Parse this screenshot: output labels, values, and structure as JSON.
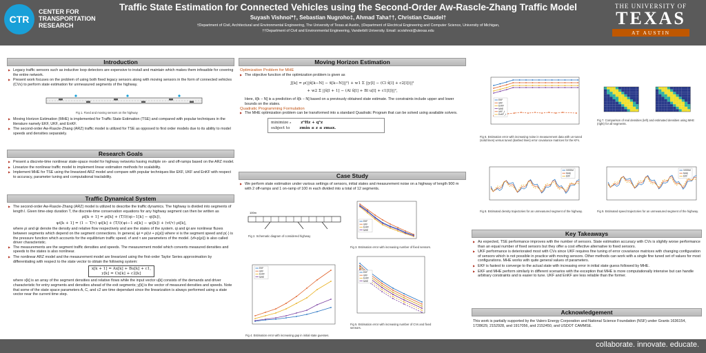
{
  "header": {
    "ctr_logo": "CTR",
    "ctr_name": "CENTER FOR TRANSPORTATION RESEARCH",
    "title": "Traffic State Estimation for Connected Vehicles using the Second-Order Aw-Rascle-Zhang Traffic Model",
    "authors": "Suyash Vishnoi*†, Sebastian Nugroho‡, Ahmad Taha††, Christian Claudel†",
    "affil_1": "†Department of Civil, Architectural and Environmental Engineering, The University of Texas at Austin, ‡Department of Electrical Engineering and Computer Science, University of Michigan,",
    "affil_2": "††Department of Civil and Environmental Engineering, Vanderbilt University.   Email: scvishnoi@utexas.edu",
    "ut_line1": "THE UNIVERSITY OF",
    "ut_line2": "TEXAS",
    "ut_line3": "AT AUSTIN"
  },
  "footer": {
    "tagline": "collaborate. innovate. educate."
  },
  "intro": {
    "heading": "Introduction",
    "b1": "Legacy traffic sensors such as inductive loop detectors are expensive to install and maintain which makes them infeasible for covering the entire network.",
    "b2": "Present work focuses on the problem of using both fixed legacy sensors along with moving sensors in the form of connected vehicles (CVs) to perform state estimation for unmeasured segments of the highway.",
    "fig1_caption": "Fig 1. Fixed and moving sensors on the highway",
    "b3": "Moving Horizon Estimation (MHE) is implemented for Traffic State Estimation (TSE) and compared with popular techniques in the literature namely EKF, UKF, and EnKF.",
    "b4": "The second-order Aw-Rascle-Zhang (ARZ) traffic model is utilized for TSE as opposed to first order models due to its ability to model speeds and densities separately."
  },
  "goals": {
    "heading": "Research Goals",
    "b1": "Present a discrete-time nonlinear state-space model for highway networks having multiple on- and off-ramps based on the ARZ model.",
    "b2": "Linearize the nonlinear traffic model to implement linear estimation methods for scalability.",
    "b3": "Implement MHE for TSE using the linearized ARZ model and compare with popular techniques like EKF, UKF and EnKF with respect to accuracy, parameter tuning and computational tractability."
  },
  "dyn": {
    "heading": "Traffic Dynamical System",
    "b1": "The second-order Aw-Rascle-Zhang (ARZ) model is utilized to describe the traffic dynamics. The highway is divided into segments of length l. Given time-step duration T, the discrete-time conservation equations for any highway segment can then be written as",
    "eq1": "ρi[k + 1] = ρi[k] + (T/l)(qi−1[k] − qi[k]),",
    "eq2": "ψi[k + 1] = (1 − T/τ) ψi[k] + (T/l)(ψi−1 zi[k] − ψi[k]) + (vf/τ) ρi[k],",
    "p1": "where ρi and ψi denote the density and relative flow respectively and are the states of the system. qi and ψi are nonlinear fluxes between segments which depend on the segment connections. In general, ψi = ρi(vi + p(ρi)) where vi is the segment speed and p(·) is the pressure function which accounts for the equilibrium traffic speed. vf and τ are parameters of the model. (vf+p(ρi)) is also called driver characteristic.",
    "b2": "The measurements are the segment traffic densities and speeds. The measurement model which converts measured densities and speeds to the states is also nonlinear.",
    "b3": "The nonlinear ARZ model and the measurement model are linearized using the first-order Taylor Series approximation by differentiating with respect to the state vector to obtain the following system:",
    "eq3": "x[k + 1] = Ax[k] + Bu[k] + c1,",
    "eq4": "y[k] = Cx[k] + c2[k]",
    "p2": "where x[k] is an array of the segment densities and relative flows while the input vector u[k] consists of the demands and driver characteristic for entry segments and densities ahead of the exit segments; y[k] is the vector of measured densities and speeds. Note that some of the state space parameters A, C, and c2 are time dependant since the linearization is always performed using a state vector near the current time step."
  },
  "mhe": {
    "heading": "Moving Horizon Estimation",
    "sub1": "Optimization Problem for MHE",
    "b1": "The objective function of the optimization problem is given as",
    "eq1": "J[k] = ρ(||x̂[k−N] − x̄[k−N]||²) + w1 Σ ||y[l] − (Cl x̂[l] + c2[l])||²",
    "eq2": "+ w2 Σ ||x̂[l + 1] − (Al x̂[l] + Bl u[l] + c1[l])||²,",
    "p1": "Here, x̄[k − N] is a prediction of x̂[k − N] based on a previously obtained state estimate. The constraints include upper and lower bounds on the states.",
    "sub2": "Quadratic Programming Formulation",
    "b2": "The MHE optimization problem can be transformed into a standard Quadratic Program that can be solved using available solvers.",
    "qp_min": "minimize",
    "qp_var": "z",
    "qp_obj": "zᵀHz + qᵀz",
    "qp_st": "subject to",
    "qp_con": "zmin ≤ z ≤ zmax."
  },
  "case": {
    "heading": "Case Study",
    "b1": "We perform state estimation under various settings of sensors, initial states and measurement noise on a highway of length 900 m with 2 off-ramps and 1 on-ramp of 100 m each divided into a total of 12 segments.",
    "fig2_caption": "Fig 2. Schematic diagram of considered highway",
    "fig2_label": "100m",
    "fig3_caption": "Fig 3. Estimation error with increasing number of fixed sensors.",
    "fig4_caption": "Fig 4. Estimation error with increasing gap in initial state guesses.",
    "fig5_caption": "Fig 5. Estimation error with increasing number of CVs and fixed sensors."
  },
  "right_figs": {
    "fig6_caption": "Fig 6. Estimation error with increasing noise in measurement data with un-tuned (solid lines) versus tuned (dashed lines) error covariance matrices for the KFs.",
    "fig7_caption": "Fig 7. Comparison of real densities (left) and estimated densities using MHE (right) for all segments.",
    "fig8_caption": "Fig 8. Estimated density trajectories for an unmeasured segment of the highway.",
    "fig9_caption": "Fig 9. Estimated speed trajectories for an unmeasured segment of the highway."
  },
  "takeaways": {
    "heading": "Key Takeaways",
    "b1": "As expected, TSE performance improves with the number of sensors. State estimation accuracy with CVs is slightly worse performance than an equal number of fixed sensors but they offer a cost effective alternative to fixed sensors.",
    "b2": "UKF performance is deteriorated most with CVs since UKF requires fine tuning of error covariance matrices with changing configuration of sensors which is not possible in practice with moving sensors. Other methods can work with a single fine tuned set of values for most configurations. MHE works with quite general values of parameters.",
    "b3": "EKF is fastest to converge to the actual state with increasing error in initial state guess followed by MHE.",
    "b4": "EKF and MHE perform similarly in different scenarios with the exception that MHE is more computationally intensive but can handle arbitrary constraints and is easier to tune. UKF and EnKF are less reliable than the former."
  },
  "ack": {
    "heading": "Acknowledgement",
    "text": "This work is partially supported by the Valero Energy Corporation and National Science Foundation (NSF) under Grants 1636154, 1728629, 2152928, and 1917056, and 2152450, and USDOT CAMMSE."
  },
  "legend": {
    "ekf": "EKF",
    "ukf": "UKF",
    "enkf": "EnKF",
    "mhe": "MHE",
    "ukf_t": "UKF_t",
    "enkf_t": "EnKF_t",
    "real": "VISSIM"
  },
  "colors": {
    "header": "#5a5a5a",
    "accent": "#19a0d8",
    "burnt_orange": "#bf5700",
    "ekf": "#1f6fc0",
    "ukf": "#e0622a",
    "enkf": "#e8b020",
    "mhe": "#7a3fa0"
  }
}
